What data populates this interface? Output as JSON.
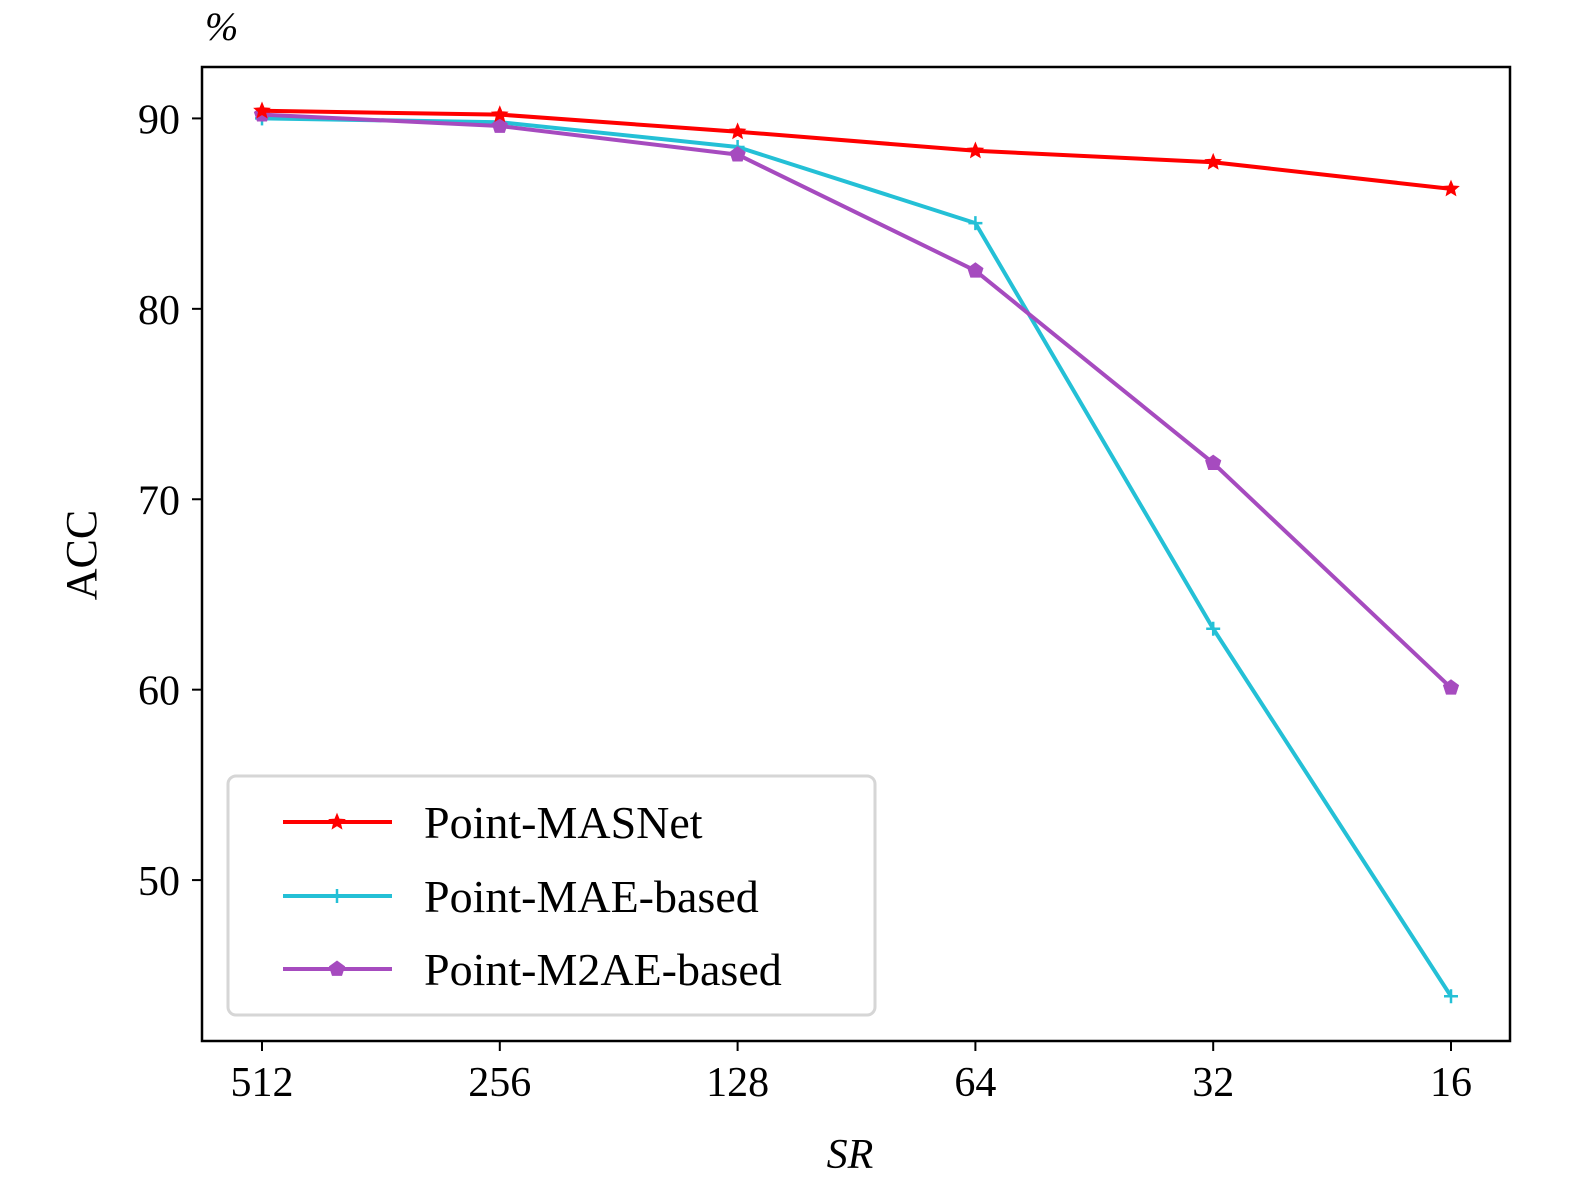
{
  "chart_data": {
    "type": "line",
    "title": "",
    "unit_label": "%",
    "xlabel": "SR",
    "ylabel": "ACC",
    "categories": [
      "512",
      "256",
      "128",
      "64",
      "32",
      "16"
    ],
    "ylim": [
      41.55,
      92.7
    ],
    "yticks": [
      50,
      60,
      70,
      80,
      90
    ],
    "grid": false,
    "legend_position": "lower-left",
    "series": [
      {
        "name": "Point-MASNet",
        "color": "#ff0000",
        "marker": "star",
        "values": [
          90.4,
          90.2,
          89.3,
          88.3,
          87.7,
          86.3
        ]
      },
      {
        "name": "Point-MAE-based",
        "color": "#24c0d6",
        "marker": "plus",
        "values": [
          90.0,
          89.8,
          88.5,
          84.5,
          63.2,
          43.9
        ]
      },
      {
        "name": "Point-M2AE-based",
        "color": "#a64bbf",
        "marker": "pentagon",
        "values": [
          90.2,
          89.6,
          88.1,
          82.0,
          71.9,
          60.1
        ]
      }
    ]
  }
}
